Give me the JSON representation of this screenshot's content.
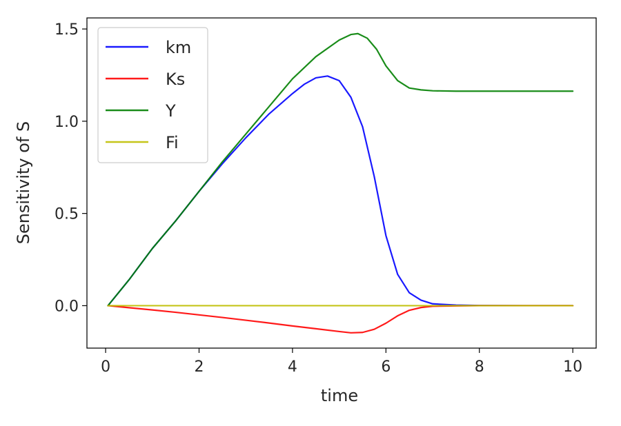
{
  "chart_data": {
    "type": "line",
    "title": "",
    "xlabel": "time",
    "ylabel": "Sensitivity of S",
    "xlim": [
      -0.4,
      10.5
    ],
    "ylim": [
      -0.23,
      1.56
    ],
    "xticks": [
      0,
      2,
      4,
      6,
      8,
      10
    ],
    "xtick_labels": [
      "0",
      "2",
      "4",
      "6",
      "8",
      "10"
    ],
    "yticks": [
      0.0,
      0.5,
      1.0,
      1.5
    ],
    "ytick_labels": [
      "0.0",
      "0.5",
      "1.0",
      "1.5"
    ],
    "grid": false,
    "legend_position": "top-left",
    "series": [
      {
        "name": "km",
        "color": "#0000ff",
        "x": [
          0.05,
          0.5,
          1,
          1.5,
          2,
          2.5,
          3,
          3.5,
          4,
          4.25,
          4.5,
          4.75,
          5,
          5.25,
          5.5,
          5.75,
          6,
          6.25,
          6.5,
          6.75,
          7,
          7.5,
          8,
          9,
          10
        ],
        "y": [
          0.0,
          0.14,
          0.31,
          0.46,
          0.62,
          0.77,
          0.91,
          1.04,
          1.15,
          1.2,
          1.235,
          1.245,
          1.22,
          1.13,
          0.97,
          0.7,
          0.38,
          0.17,
          0.07,
          0.03,
          0.01,
          0.003,
          0.001,
          0.0,
          0.0
        ]
      },
      {
        "name": "Ks",
        "color": "#ff0000",
        "x": [
          0.05,
          0.5,
          1,
          1.5,
          2,
          2.5,
          3,
          3.5,
          4,
          4.5,
          5,
          5.25,
          5.5,
          5.75,
          6,
          6.25,
          6.5,
          6.75,
          7,
          7.5,
          8,
          9,
          10
        ],
        "y": [
          0.0,
          -0.011,
          -0.023,
          -0.036,
          -0.05,
          -0.064,
          -0.079,
          -0.094,
          -0.11,
          -0.125,
          -0.14,
          -0.147,
          -0.145,
          -0.128,
          -0.095,
          -0.055,
          -0.025,
          -0.01,
          -0.003,
          -0.001,
          0.0,
          0.0,
          0.0
        ]
      },
      {
        "name": "Y",
        "color": "#008000",
        "x": [
          0.05,
          0.5,
          1,
          1.5,
          2,
          2.5,
          3,
          3.5,
          4,
          4.5,
          5,
          5.25,
          5.4,
          5.6,
          5.8,
          6,
          6.25,
          6.5,
          6.75,
          7,
          7.5,
          8,
          9,
          10
        ],
        "y": [
          0.0,
          0.14,
          0.31,
          0.46,
          0.62,
          0.78,
          0.93,
          1.08,
          1.23,
          1.35,
          1.44,
          1.47,
          1.475,
          1.45,
          1.39,
          1.3,
          1.22,
          1.18,
          1.17,
          1.165,
          1.163,
          1.163,
          1.163,
          1.163
        ]
      },
      {
        "name": "Fi",
        "color": "#bfbf00",
        "x": [
          0.05,
          10
        ],
        "y": [
          0.0,
          0.0
        ]
      }
    ]
  }
}
